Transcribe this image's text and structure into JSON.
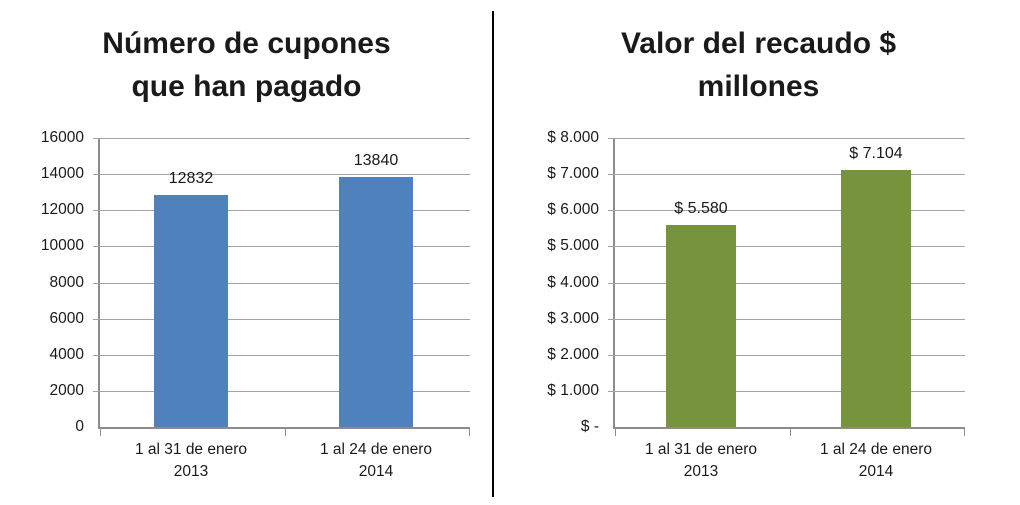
{
  "figure": {
    "background_color": "#ffffff",
    "divider_color": "#000000",
    "gridline_color": "#a3a3a3",
    "axis_color": "#8c8c8c",
    "text_color": "#1a1a1a"
  },
  "chart_data": [
    {
      "type": "bar",
      "title": "Número de cupones que han pagado",
      "title_lines": [
        "Número de cupones",
        "que han pagado"
      ],
      "categories": [
        "1 al 31 de enero 2013",
        "1 al 24 de enero 2014"
      ],
      "category_lines": [
        [
          "1 al 31 de enero",
          "2013"
        ],
        [
          "1 al 24 de enero",
          "2014"
        ]
      ],
      "values": [
        12832,
        13840
      ],
      "data_labels": [
        "12832",
        "13840"
      ],
      "ylim": [
        0,
        16000
      ],
      "ytick_step": 2000,
      "ytick_labels_top_to_bottom": [
        "16000",
        "14000",
        "12000",
        "10000",
        "8000",
        "6000",
        "4000",
        "2000",
        "0"
      ],
      "bar_color": "#4F81BD",
      "grid": true,
      "legend": false,
      "xlabel": "",
      "ylabel": ""
    },
    {
      "type": "bar",
      "title": "Valor del recaudo $ millones",
      "title_lines": [
        "Valor del recaudo $",
        "millones"
      ],
      "categories": [
        "1 al 31 de enero 2013",
        "1 al 24 de enero 2014"
      ],
      "category_lines": [
        [
          "1 al 31 de enero",
          "2013"
        ],
        [
          "1 al 24 de enero",
          "2014"
        ]
      ],
      "values": [
        5580,
        7104
      ],
      "data_labels": [
        "$ 5.580",
        "$ 7.104"
      ],
      "ylim": [
        0,
        8000
      ],
      "ytick_step": 1000,
      "ytick_labels_top_to_bottom": [
        "$ 8.000",
        "$ 7.000",
        "$ 6.000",
        "$ 5.000",
        "$ 4.000",
        "$ 3.000",
        "$ 2.000",
        "$ 1.000",
        "$ -"
      ],
      "bar_color": "#77933C",
      "grid": true,
      "legend": false,
      "xlabel": "",
      "ylabel": ""
    }
  ]
}
